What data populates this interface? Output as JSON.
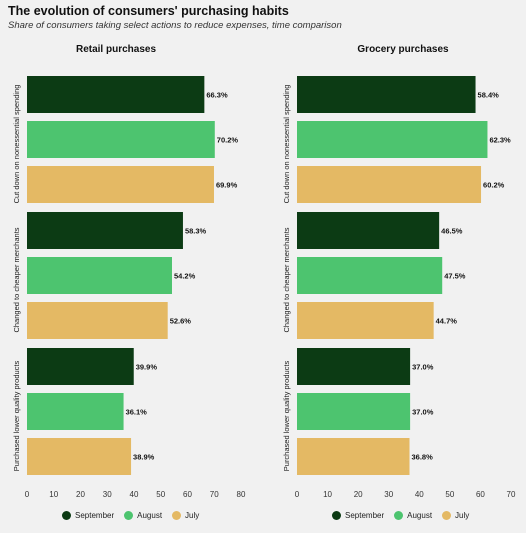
{
  "header": {
    "title": "The evolution of consumers' purchasing habits",
    "subtitle": "Share of consumers taking select actions to reduce expenses, time comparison"
  },
  "colors": {
    "September": "#0c3b14",
    "August": "#4dc46f",
    "July": "#e4b964"
  },
  "chart_data": [
    {
      "type": "bar",
      "orientation": "horizontal",
      "title": "Retail purchases",
      "categories": [
        "Cut down on nonessential spending",
        "Changed to cheaper merchants",
        "Purchased lower quality products"
      ],
      "series": [
        {
          "name": "September",
          "values": [
            66.3,
            58.3,
            39.9
          ]
        },
        {
          "name": "August",
          "values": [
            70.2,
            54.2,
            36.1
          ]
        },
        {
          "name": "July",
          "values": [
            69.9,
            52.6,
            38.9
          ]
        }
      ],
      "value_labels": [
        [
          "66.3%",
          "70.2%",
          "69.9%"
        ],
        [
          "58.3%",
          "54.2%",
          "52.6%"
        ],
        [
          "39.9%",
          "36.1%",
          "38.9%"
        ]
      ],
      "xlim": [
        0,
        80
      ],
      "xticks": [
        "0",
        "10",
        "20",
        "30",
        "40",
        "50",
        "60",
        "70",
        "80"
      ],
      "legend": "bottom"
    },
    {
      "type": "bar",
      "orientation": "horizontal",
      "title": "Grocery purchases",
      "categories": [
        "Cut down on nonessential spending",
        "Changed to cheaper merchants",
        "Purchased lower quality products"
      ],
      "series": [
        {
          "name": "September",
          "values": [
            58.4,
            46.5,
            37.0
          ]
        },
        {
          "name": "August",
          "values": [
            62.3,
            47.5,
            37.0
          ]
        },
        {
          "name": "July",
          "values": [
            60.2,
            44.7,
            36.8
          ]
        }
      ],
      "value_labels": [
        [
          "58.4%",
          "62.3%",
          "60.2%"
        ],
        [
          "46.5%",
          "47.5%",
          "44.7%"
        ],
        [
          "37.0%",
          "37.0%",
          "36.8%"
        ]
      ],
      "xlim": [
        0,
        70
      ],
      "xticks": [
        "0",
        "10",
        "20",
        "30",
        "40",
        "50",
        "60",
        "70"
      ],
      "legend": "bottom"
    }
  ]
}
